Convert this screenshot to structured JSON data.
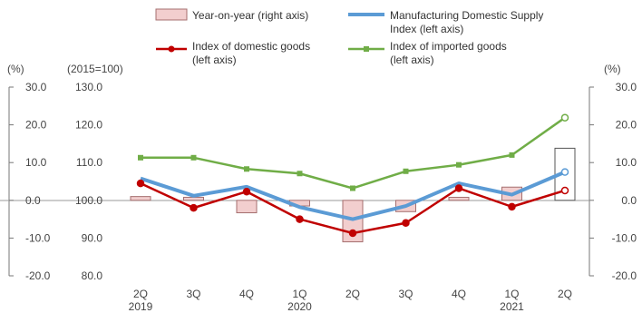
{
  "chart_data": {
    "type": "bar+line",
    "title": "",
    "left_axis": {
      "unit": "(2015=100)",
      "ylim": [
        80,
        130
      ],
      "ticks": [
        "80.0",
        "90.0",
        "100.0",
        "110.0",
        "120.0",
        "130.0"
      ]
    },
    "right_axis": {
      "unit": "(%)",
      "ylim": [
        -20,
        30
      ],
      "ticks": [
        "-20.0",
        "-10.0",
        "0.0",
        "10.0",
        "20.0",
        "30.0"
      ]
    },
    "far_left_axis": {
      "unit": "(%)",
      "ticks": [
        "-20.0",
        "-10.0",
        "0.0",
        "10.0",
        "20.0",
        "30.0"
      ]
    },
    "categories": [
      "2Q",
      "3Q",
      "4Q",
      "1Q",
      "2Q",
      "3Q",
      "4Q",
      "1Q",
      "2Q"
    ],
    "year_labels": [
      "2019",
      "",
      "",
      "2020",
      "",
      "",
      "",
      "2021",
      ""
    ],
    "legend": [
      {
        "label": "Year-on-year (right axis)",
        "kind": "bar"
      },
      {
        "label": "Manufacturing Domestic Supply Index (left axis)",
        "kind": "line",
        "color": "#5b9bd5"
      },
      {
        "label": "Index of domestic goods (left axis)",
        "kind": "line",
        "color": "#c00000"
      },
      {
        "label": "Index of imported goods (left axis)",
        "kind": "line",
        "color": "#70ad47"
      }
    ],
    "bar_series": {
      "name": "Year-on-year (right axis)",
      "values": [
        1.0,
        0.8,
        -3.3,
        -1.5,
        -11.0,
        -3.0,
        0.8,
        3.5,
        13.8
      ],
      "fill": "#f2cece",
      "stroke": "#a56f6f"
    },
    "series": [
      {
        "name": "Manufacturing Domestic Supply Index (left axis)",
        "color": "#5b9bd5",
        "values": [
          105.8,
          101.2,
          103.6,
          98.2,
          95.0,
          98.5,
          104.5,
          101.5,
          107.5
        ]
      },
      {
        "name": "Index of domestic goods (left axis)",
        "color": "#c00000",
        "values": [
          104.5,
          98.0,
          102.3,
          95.0,
          91.3,
          94.0,
          103.2,
          98.3,
          102.6
        ]
      },
      {
        "name": "Index of imported goods (left axis)",
        "color": "#70ad47",
        "values": [
          111.3,
          111.3,
          108.3,
          107.1,
          103.2,
          107.7,
          109.4,
          112.0,
          121.9
        ]
      }
    ]
  }
}
